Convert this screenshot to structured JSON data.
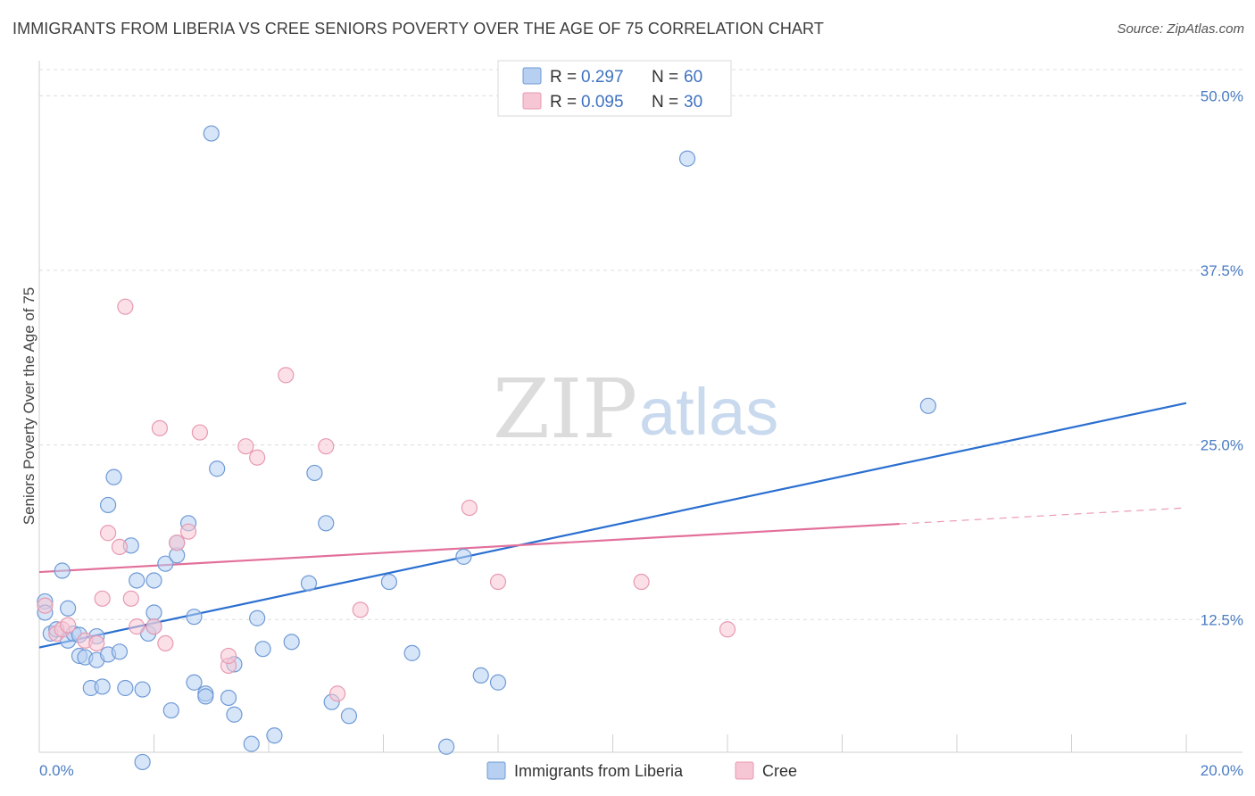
{
  "title": "IMMIGRANTS FROM LIBERIA VS CREE SENIORS POVERTY OVER THE AGE OF 75 CORRELATION CHART",
  "source": "Source: ZipAtlas.com",
  "watermark": {
    "zip": "ZIP",
    "atlas": "atlas"
  },
  "colors": {
    "blue_fill": "#b7d0f2",
    "blue_stroke": "#6f9ad6",
    "blue_line": "#2a6fd0",
    "pink_fill": "#f7c6d4",
    "pink_stroke": "#e79ab2",
    "pink_line": "#e2709a",
    "grid": "#dcdcdc",
    "tick_text": "#4a7cc4"
  },
  "legend": {
    "rows": [
      {
        "r_label": "R = ",
        "r_value": "0.297",
        "n_label": "N = ",
        "n_value": "60"
      },
      {
        "r_label": "R = ",
        "r_value": "0.095",
        "n_label": "N = ",
        "n_value": "30"
      }
    ]
  },
  "chart_data": {
    "type": "scatter",
    "xlabel": "",
    "ylabel": "Seniors Poverty Over the Age of 75",
    "xlim": [
      0,
      20
    ],
    "ylim": [
      3,
      52
    ],
    "x_tick_labels": [
      "0.0%",
      "20.0%"
    ],
    "y_ticks": [
      12.5,
      25.0,
      37.5,
      50.0
    ],
    "y_tick_labels": [
      "12.5%",
      "25.0%",
      "37.5%",
      "50.0%"
    ],
    "grid": true,
    "series": [
      {
        "name": "Immigrants from Liberia",
        "color": "blue",
        "trend": {
          "x0": 0,
          "y0": 10.5,
          "x1": 20,
          "y1": 28.0,
          "dashed_from": null
        },
        "points": [
          [
            0.1,
            13.8
          ],
          [
            0.1,
            13.0
          ],
          [
            0.2,
            11.5
          ],
          [
            0.3,
            11.8
          ],
          [
            0.4,
            16.0
          ],
          [
            0.5,
            11.0
          ],
          [
            0.5,
            13.3
          ],
          [
            0.6,
            11.5
          ],
          [
            0.7,
            9.9
          ],
          [
            0.7,
            11.4
          ],
          [
            0.8,
            9.8
          ],
          [
            0.9,
            7.6
          ],
          [
            1.0,
            9.6
          ],
          [
            1.0,
            11.3
          ],
          [
            1.1,
            7.7
          ],
          [
            1.2,
            10.0
          ],
          [
            1.2,
            20.7
          ],
          [
            1.3,
            22.7
          ],
          [
            1.4,
            10.2
          ],
          [
            1.5,
            7.6
          ],
          [
            1.6,
            17.8
          ],
          [
            1.7,
            15.3
          ],
          [
            1.8,
            7.5
          ],
          [
            1.8,
            2.3
          ],
          [
            1.9,
            11.5
          ],
          [
            2.0,
            13.0
          ],
          [
            2.0,
            12.0
          ],
          [
            2.0,
            15.3
          ],
          [
            2.2,
            16.5
          ],
          [
            2.3,
            6.0
          ],
          [
            2.4,
            17.1
          ],
          [
            2.4,
            18.0
          ],
          [
            2.6,
            19.4
          ],
          [
            2.7,
            8.0
          ],
          [
            2.7,
            12.7
          ],
          [
            2.9,
            7.2
          ],
          [
            2.9,
            7.0
          ],
          [
            3.0,
            47.3
          ],
          [
            3.1,
            23.3
          ],
          [
            3.3,
            6.9
          ],
          [
            3.4,
            5.7
          ],
          [
            3.4,
            9.3
          ],
          [
            3.7,
            3.6
          ],
          [
            3.8,
            12.6
          ],
          [
            3.9,
            10.4
          ],
          [
            4.1,
            4.2
          ],
          [
            4.4,
            10.9
          ],
          [
            4.7,
            15.1
          ],
          [
            4.8,
            23.0
          ],
          [
            5.0,
            19.4
          ],
          [
            5.1,
            6.6
          ],
          [
            5.4,
            5.6
          ],
          [
            6.1,
            15.2
          ],
          [
            6.5,
            10.1
          ],
          [
            7.1,
            3.4
          ],
          [
            7.4,
            17.0
          ],
          [
            7.7,
            8.5
          ],
          [
            8.0,
            8.0
          ],
          [
            11.3,
            45.5
          ],
          [
            15.5,
            27.8
          ]
        ]
      },
      {
        "name": "Cree",
        "color": "pink",
        "trend": {
          "x0": 0,
          "y0": 15.9,
          "x1": 20,
          "y1": 20.5,
          "dashed_from": 15.0
        },
        "points": [
          [
            0.1,
            13.5
          ],
          [
            0.3,
            11.5
          ],
          [
            0.4,
            11.8
          ],
          [
            0.5,
            12.1
          ],
          [
            0.8,
            11.0
          ],
          [
            1.0,
            10.8
          ],
          [
            1.1,
            14.0
          ],
          [
            1.2,
            18.7
          ],
          [
            1.4,
            17.7
          ],
          [
            1.5,
            34.9
          ],
          [
            1.6,
            14.0
          ],
          [
            1.7,
            12.0
          ],
          [
            2.0,
            12.0
          ],
          [
            2.1,
            26.2
          ],
          [
            2.2,
            10.8
          ],
          [
            2.4,
            18.0
          ],
          [
            2.6,
            18.8
          ],
          [
            2.8,
            25.9
          ],
          [
            3.3,
            9.2
          ],
          [
            3.3,
            9.9
          ],
          [
            3.6,
            24.9
          ],
          [
            3.8,
            24.1
          ],
          [
            4.3,
            30.0
          ],
          [
            5.0,
            24.9
          ],
          [
            5.2,
            7.2
          ],
          [
            5.6,
            13.2
          ],
          [
            7.5,
            20.5
          ],
          [
            8.0,
            15.2
          ],
          [
            10.5,
            15.2
          ],
          [
            12.0,
            11.8
          ]
        ]
      }
    ]
  },
  "bottom_legend": [
    "Immigrants from Liberia",
    "Cree"
  ]
}
